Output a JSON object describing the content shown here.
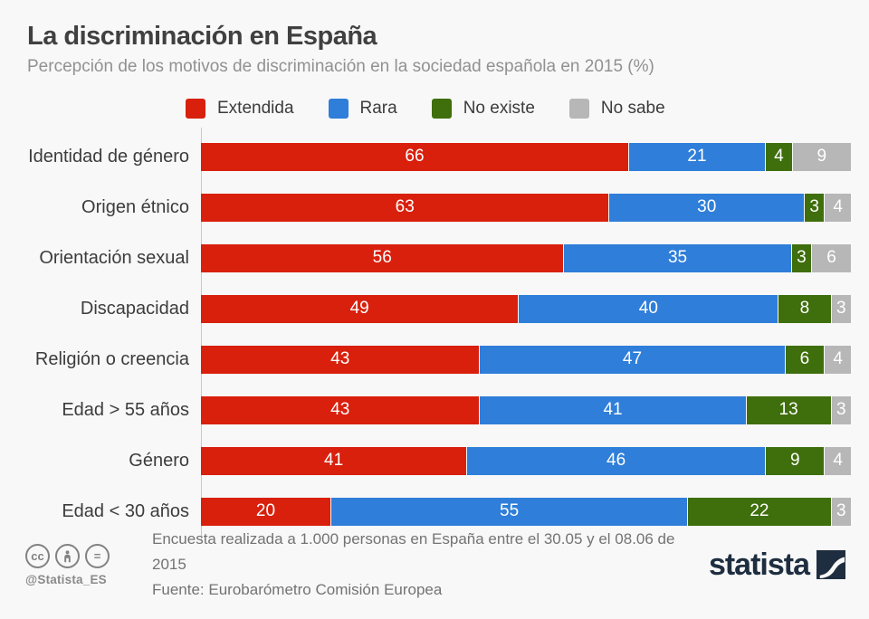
{
  "page": {
    "title": "La discriminación en España",
    "subtitle": "Percepción de los motivos de discriminación en la sociedad española en 2015 (%)"
  },
  "legend": [
    {
      "label": "Extendida",
      "color": "#d8200d"
    },
    {
      "label": "Rara",
      "color": "#2f7ed9"
    },
    {
      "label": "No existe",
      "color": "#3f6e0c"
    },
    {
      "label": "No sabe",
      "color": "#b7b7b7"
    }
  ],
  "chart_data": {
    "type": "bar",
    "orientation": "horizontal",
    "stacked": true,
    "unit": "%",
    "xlim": [
      0,
      100
    ],
    "grid": false,
    "legend_position": "top",
    "value_labels": "inside, white",
    "categories": [
      "Identidad de género",
      "Origen étnico",
      "Orientación sexual",
      "Discapacidad",
      "Religión o creencia",
      "Edad > 55 años",
      "Género",
      "Edad < 30 años"
    ],
    "series": [
      {
        "name": "Extendida",
        "color": "#d8200d",
        "values": [
          66,
          63,
          56,
          49,
          43,
          43,
          41,
          20
        ]
      },
      {
        "name": "Rara",
        "color": "#2f7ed9",
        "values": [
          21,
          30,
          35,
          40,
          47,
          41,
          46,
          55
        ]
      },
      {
        "name": "No existe",
        "color": "#3f6e0c",
        "values": [
          4,
          3,
          3,
          8,
          6,
          13,
          9,
          22
        ]
      },
      {
        "name": "No sabe",
        "color": "#b7b7b7",
        "values": [
          9,
          4,
          6,
          3,
          4,
          3,
          4,
          3
        ]
      }
    ]
  },
  "footer": {
    "license_icons": [
      "cc-icon",
      "attribution-icon",
      "equal-icon"
    ],
    "handle": "@Statista_ES",
    "note_line1": "Encuesta realizada a 1.000 personas en España entre el 30.05 y el 08.06 de 2015",
    "note_line2": "Fuente: Eurobarómetro Comisión Europea",
    "brand": "statista"
  },
  "colors": {
    "background": "#f8f8f8",
    "title": "#404040",
    "subtitle": "#919191",
    "category_label": "#3c3c3c",
    "footer_text": "#737373",
    "brand_navy": "#1e2e40",
    "axis_line": "#c9c9c9"
  }
}
